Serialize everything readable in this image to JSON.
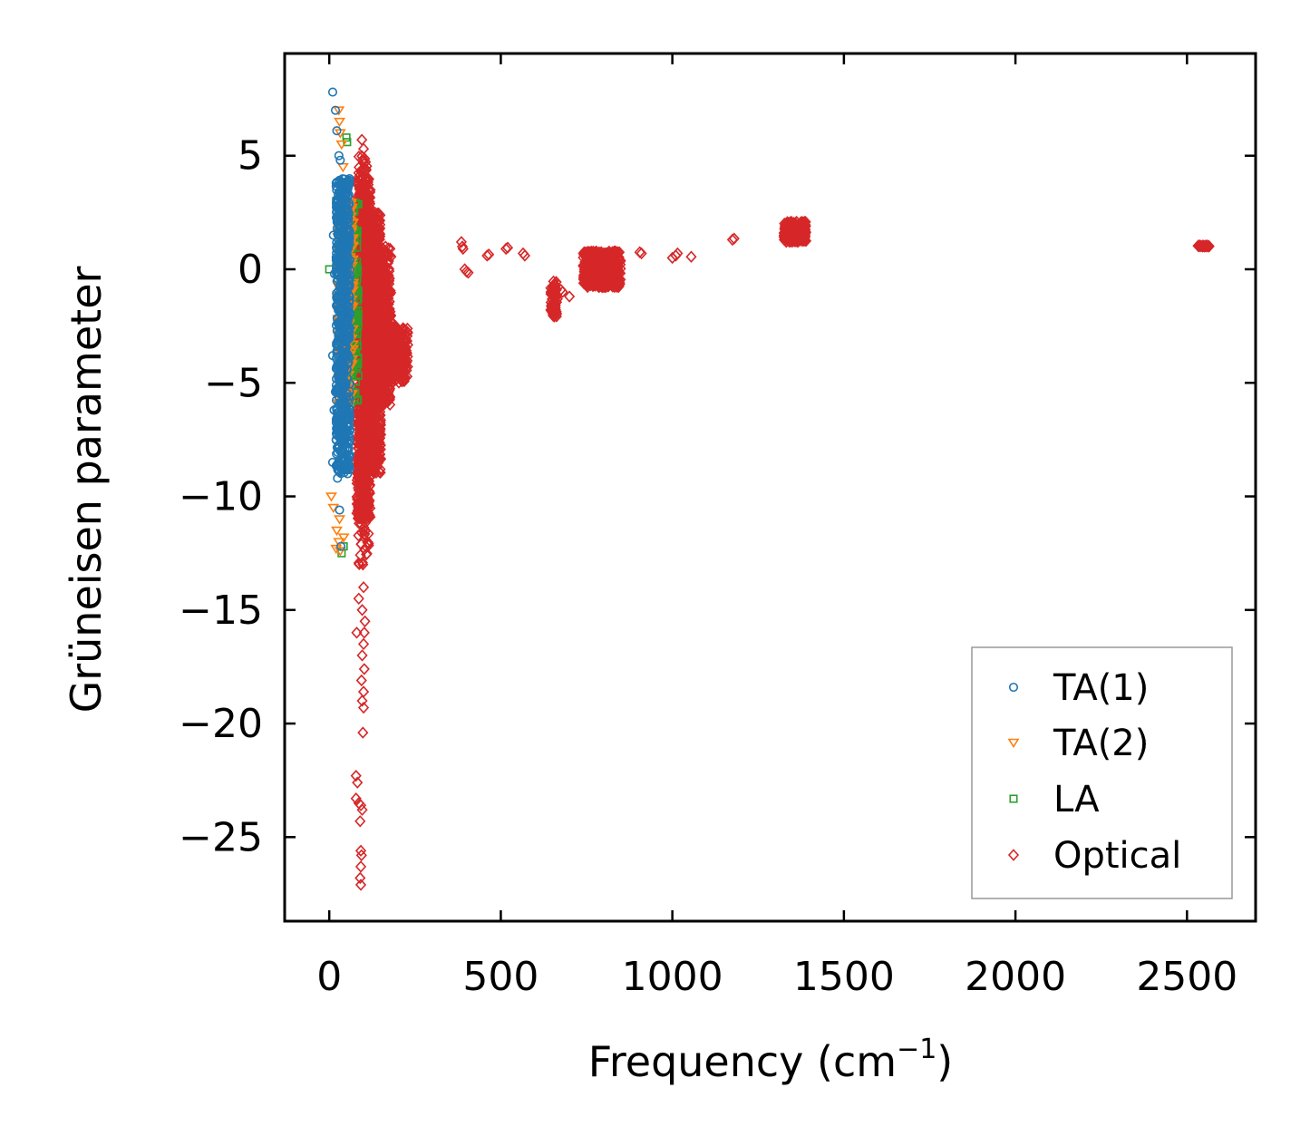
{
  "chart_data": {
    "type": "scatter",
    "title": "",
    "xlabel": "Frequency (cm",
    "xlabel_sup": "−1",
    "xlabel_close": ")",
    "ylabel": "Grüneisen parameter",
    "xlim": [
      -130,
      2700
    ],
    "ylim": [
      -28.7,
      9.5
    ],
    "xticks": [
      0,
      500,
      1000,
      1500,
      2000,
      2500
    ],
    "yticks": [
      5,
      0,
      -5,
      -10,
      -15,
      -20,
      -25
    ],
    "xtick_labels": [
      "0",
      "500",
      "1000",
      "1500",
      "2000",
      "2500"
    ],
    "ytick_labels": [
      "5",
      "0",
      "−5",
      "−10",
      "−15",
      "−20",
      "−25"
    ],
    "legend_position": "lower-right",
    "series": [
      {
        "name": "TA(1)",
        "color": "#1f77b4",
        "marker": "circle",
        "clusters": [
          {
            "x": [
              20,
              60
            ],
            "y": [
              -9,
              4
            ],
            "n": 700
          }
        ],
        "points": [
          [
            10,
            7.8
          ],
          [
            18,
            7.0
          ],
          [
            22,
            6.1
          ],
          [
            28,
            5.0
          ],
          [
            32,
            4.8
          ],
          [
            12,
            1.5
          ],
          [
            15,
            -0.2
          ],
          [
            10,
            -3.8
          ],
          [
            14,
            -6.2
          ],
          [
            10,
            -8.5
          ],
          [
            24,
            -9.2
          ],
          [
            30,
            -10.6
          ],
          [
            34,
            -12.2
          ],
          [
            20,
            -7.5
          ],
          [
            26,
            -7.9
          ],
          [
            38,
            -6.9
          ],
          [
            18,
            -5.4
          ]
        ]
      },
      {
        "name": "TA(2)",
        "color": "#ff7f0e",
        "marker": "triangle-down",
        "clusters": [
          {
            "x": [
              25,
              70
            ],
            "y": [
              -6,
              3
            ],
            "n": 260
          }
        ],
        "points": [
          [
            28,
            7.0
          ],
          [
            30,
            6.5
          ],
          [
            32,
            6.0
          ],
          [
            36,
            5.5
          ],
          [
            40,
            4.5
          ],
          [
            38,
            3.8
          ],
          [
            6,
            -10.0
          ],
          [
            12,
            -10.5
          ],
          [
            22,
            -11.5
          ],
          [
            28,
            -12.0
          ],
          [
            32,
            -12.4
          ],
          [
            30,
            -11.0
          ],
          [
            42,
            -11.8
          ],
          [
            20,
            -12.3
          ],
          [
            34,
            -7.0
          ],
          [
            44,
            -4.6
          ],
          [
            50,
            -3.0
          ]
        ]
      },
      {
        "name": "LA",
        "color": "#2ca02c",
        "marker": "square",
        "clusters": [
          {
            "x": [
              35,
              85
            ],
            "y": [
              -6,
              3
            ],
            "n": 260
          }
        ],
        "points": [
          [
            50,
            5.8
          ],
          [
            52,
            5.6
          ],
          [
            20,
            3.0
          ],
          [
            0,
            0.0
          ],
          [
            40,
            3.5
          ],
          [
            46,
            3.8
          ],
          [
            36,
            -12.5
          ],
          [
            42,
            -12.2
          ],
          [
            48,
            -6.5
          ],
          [
            60,
            -4.0
          ],
          [
            70,
            -2.0
          ]
        ]
      },
      {
        "name": "Optical",
        "color": "#d62728",
        "marker": "diamond",
        "clusters": [
          {
            "x": [
              80,
              120
            ],
            "y": [
              -11,
              4
            ],
            "n": 900
          },
          {
            "x": [
              100,
              150
            ],
            "y": [
              -9,
              2.5
            ],
            "n": 900
          },
          {
            "x": [
              120,
              180
            ],
            "y": [
              -6,
              1
            ],
            "n": 500
          },
          {
            "x": [
              150,
              230
            ],
            "y": [
              -5,
              -2.5
            ],
            "n": 260
          },
          {
            "x": [
              85,
              115
            ],
            "y": [
              -13,
              5
            ],
            "n": 220
          },
          {
            "x": [
              1325,
              1390
            ],
            "y": [
              1.2,
              2.1
            ],
            "n": 200
          },
          {
            "x": [
              740,
              850
            ],
            "y": [
              -0.8,
              0.8
            ],
            "n": 420
          },
          {
            "x": [
              645,
              665
            ],
            "y": [
              -2.1,
              -0.5
            ],
            "n": 70
          },
          {
            "x": [
              2530,
              2565
            ],
            "y": [
              1.0,
              1.05
            ],
            "n": 30
          }
        ],
        "points": [
          [
            95,
            5.7
          ],
          [
            100,
            5.3
          ],
          [
            96,
            4.8
          ],
          [
            98,
            -13.0
          ],
          [
            100,
            -14.0
          ],
          [
            96,
            -15.0
          ],
          [
            102,
            -16.0
          ],
          [
            100,
            -16.5
          ],
          [
            96,
            -17.0
          ],
          [
            102,
            -17.6
          ],
          [
            94,
            -18.1
          ],
          [
            100,
            -18.6
          ],
          [
            96,
            -19.0
          ],
          [
            100,
            -19.3
          ],
          [
            98,
            -20.4
          ],
          [
            78,
            -22.3
          ],
          [
            82,
            -22.6
          ],
          [
            78,
            -23.3
          ],
          [
            86,
            -23.5
          ],
          [
            92,
            -23.6
          ],
          [
            96,
            -23.8
          ],
          [
            90,
            -24.3
          ],
          [
            92,
            -25.6
          ],
          [
            94,
            -25.8
          ],
          [
            92,
            -26.3
          ],
          [
            90,
            -26.8
          ],
          [
            92,
            -27.1
          ],
          [
            86,
            -14.5
          ],
          [
            104,
            -15.5
          ],
          [
            80,
            -16.0
          ],
          [
            385,
            1.2
          ],
          [
            390,
            0.9
          ],
          [
            388,
            1.0
          ],
          [
            395,
            0.0
          ],
          [
            400,
            -0.1
          ],
          [
            405,
            -0.15
          ],
          [
            460,
            0.6
          ],
          [
            465,
            0.65
          ],
          [
            515,
            0.9
          ],
          [
            520,
            0.95
          ],
          [
            565,
            0.7
          ],
          [
            570,
            0.6
          ],
          [
            680,
            -1.0
          ],
          [
            700,
            -1.2
          ],
          [
            675,
            -0.9
          ],
          [
            905,
            0.75
          ],
          [
            910,
            0.7
          ],
          [
            1000,
            0.5
          ],
          [
            1010,
            0.6
          ],
          [
            1015,
            0.7
          ],
          [
            1055,
            0.55
          ],
          [
            1175,
            1.3
          ],
          [
            1180,
            1.35
          ]
        ]
      }
    ]
  }
}
